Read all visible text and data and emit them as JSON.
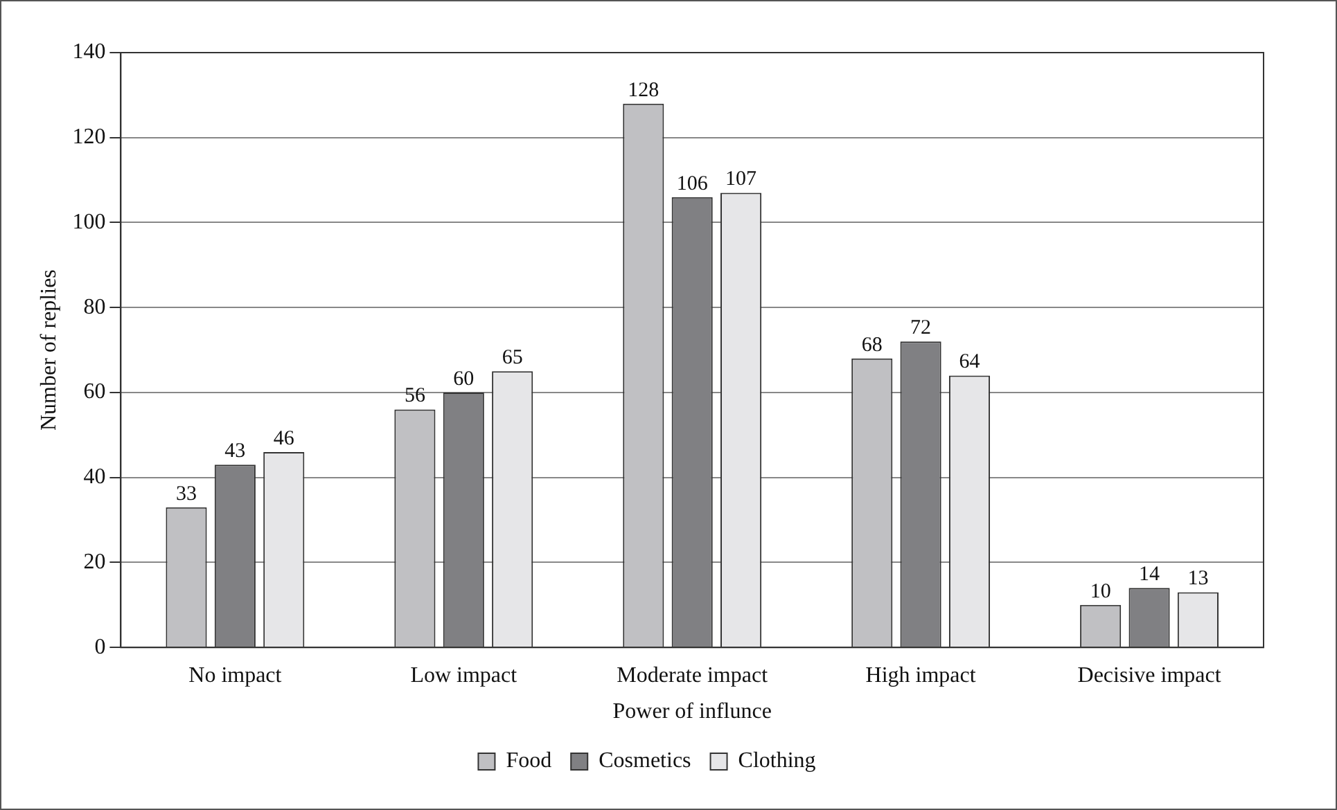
{
  "chart_data": {
    "type": "bar",
    "xlabel": "Power of influnce",
    "ylabel": "Number of replies",
    "categories": [
      "No impact",
      "Low impact",
      "Moderate impact",
      "High impact",
      "Decisive impact"
    ],
    "series": [
      {
        "name": "Food",
        "color": "#c0c0c3",
        "values": [
          33,
          56,
          128,
          68,
          10
        ]
      },
      {
        "name": "Cosmetics",
        "color": "#808083",
        "values": [
          43,
          60,
          106,
          72,
          14
        ]
      },
      {
        "name": "Clothing",
        "color": "#e6e6e8",
        "values": [
          46,
          65,
          107,
          64,
          13
        ]
      }
    ],
    "ylim": [
      0,
      140
    ],
    "yticks": [
      0,
      20,
      40,
      60,
      80,
      100,
      120,
      140
    ],
    "grid": "y",
    "legend": "bottom",
    "data_labels": true
  }
}
